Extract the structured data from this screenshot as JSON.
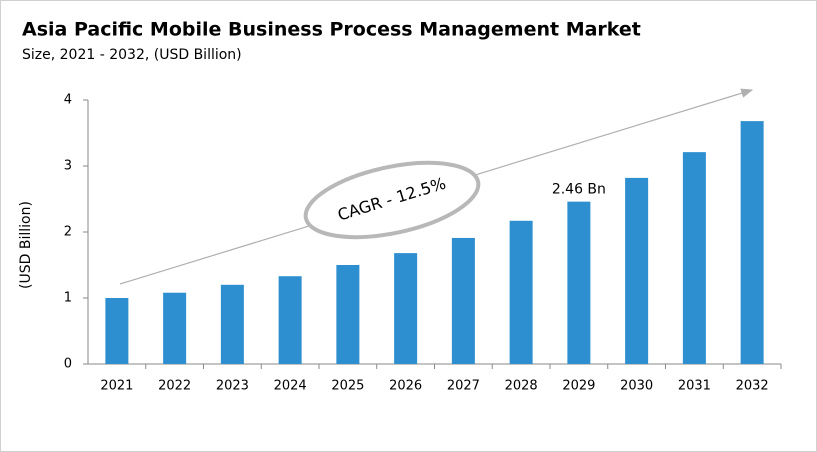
{
  "chart_data": {
    "type": "bar",
    "title": "Asia Pacific Mobile Business Process Management Market",
    "subtitle": "Size, 2021 - 2032, (USD Billion)",
    "y_label": "(USD Billion)",
    "annotation": "CAGR - 12.5%",
    "categories": [
      "2021",
      "2022",
      "2023",
      "2024",
      "2025",
      "2026",
      "2027",
      "2028",
      "2029",
      "2030",
      "2031",
      "2032"
    ],
    "values": [
      1.0,
      1.08,
      1.2,
      1.33,
      1.5,
      1.68,
      1.91,
      2.17,
      2.46,
      2.82,
      3.21,
      3.68
    ],
    "value_labels": [
      null,
      null,
      null,
      null,
      null,
      null,
      null,
      null,
      "2.46 Bn",
      null,
      null,
      null
    ],
    "color": "#2e8fd0",
    "ylim": [
      0,
      4
    ],
    "yticks": [
      0,
      1,
      2,
      3,
      4
    ],
    "grid": false
  }
}
